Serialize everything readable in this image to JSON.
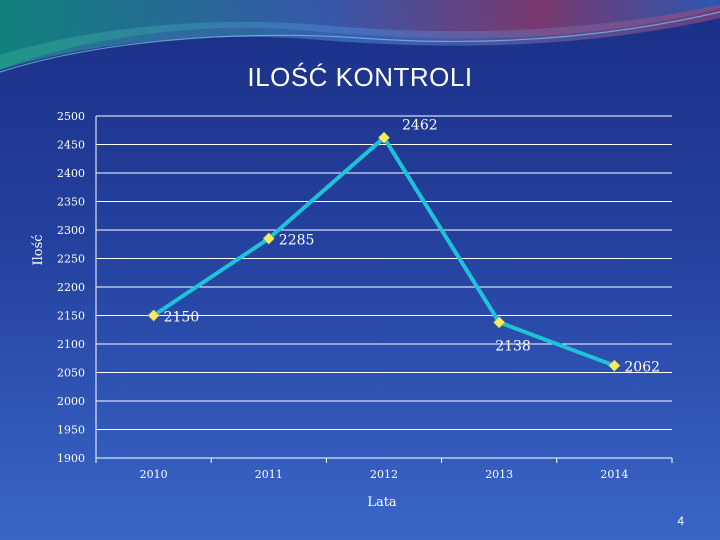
{
  "slide": {
    "page_number": "4"
  },
  "colors": {
    "line": "#1ec3da",
    "marker": "#f2ea6a",
    "grid": "#ffffff",
    "text": "#ffffff"
  },
  "chart_data": {
    "type": "line",
    "title": "ILOŚĆ KONTROLI",
    "xlabel": "Lata",
    "ylabel": "Ilość",
    "categories": [
      "2010",
      "2011",
      "2012",
      "2013",
      "2014"
    ],
    "series": [
      {
        "values": [
          2150,
          2285,
          2462,
          2138,
          2062
        ]
      }
    ],
    "data_labels": [
      "2150",
      "2285",
      "2462",
      "2138",
      "2062"
    ],
    "yticks": [
      "1900",
      "1950",
      "2000",
      "2050",
      "2100",
      "2150",
      "2200",
      "2250",
      "2300",
      "2350",
      "2400",
      "2450",
      "2500"
    ],
    "ylim": [
      1900,
      2500
    ],
    "grid": true,
    "legend": "none"
  }
}
